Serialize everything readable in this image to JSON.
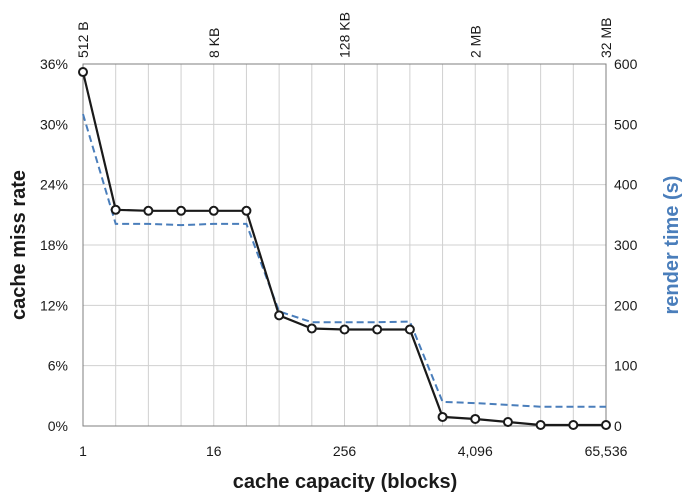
{
  "chart_data": {
    "type": "line",
    "title": "",
    "xlabel": "cache capacity (blocks)",
    "ylabel": "cache miss rate",
    "y2label": "render time (s)",
    "x_scale": "log2",
    "x_ticks": [
      "1",
      "16",
      "256",
      "4,096",
      "65,536"
    ],
    "x_tick_values": [
      1,
      16,
      256,
      4096,
      65536
    ],
    "top_ticks": [
      "512 B",
      "8 KB",
      "128 KB",
      "2 MB",
      "32 MB"
    ],
    "y_ticks": [
      "0%",
      "6%",
      "12%",
      "18%",
      "24%",
      "30%",
      "36%"
    ],
    "y2_ticks": [
      "0",
      "100",
      "200",
      "300",
      "400",
      "500",
      "600"
    ],
    "ylim": [
      0,
      36
    ],
    "y2lim": [
      0,
      600
    ],
    "grid": true,
    "x": [
      1,
      2,
      4,
      8,
      16,
      32,
      64,
      128,
      256,
      512,
      1024,
      2048,
      4096,
      8192,
      16384,
      32768,
      65536
    ],
    "series": [
      {
        "name": "cache miss rate",
        "axis": "left",
        "style": "solid-markers",
        "color": "#1a1a1a",
        "values": [
          35.2,
          21.5,
          21.4,
          21.4,
          21.4,
          21.4,
          11.0,
          9.7,
          9.6,
          9.6,
          9.6,
          0.9,
          0.7,
          0.4,
          0.1,
          0.1,
          0.1
        ]
      },
      {
        "name": "render time (s)",
        "axis": "right",
        "style": "dashed",
        "color": "#4a7ebb",
        "values": [
          517,
          335,
          335,
          333,
          335,
          335,
          190,
          172,
          172,
          172,
          173,
          40,
          38,
          35,
          32,
          32,
          32
        ]
      }
    ],
    "colors": {
      "axis_right_label": "#4a7ebb",
      "grid": "#d0d0d0"
    }
  }
}
